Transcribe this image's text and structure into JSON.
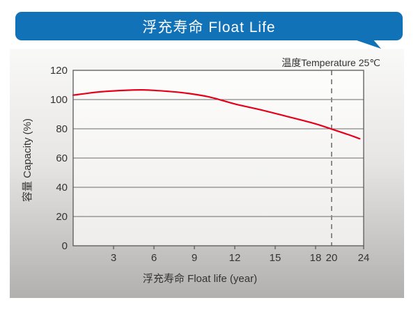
{
  "header": {
    "title": "浮充寿命 Float Life"
  },
  "colors": {
    "banner": "#1272b8",
    "curve": "#e60019",
    "grid": "#6b6b6b",
    "border": "#59595b",
    "dashed": "#8a8a8a",
    "text": "#333333",
    "plot_top": "#fdfdfc",
    "plot_bottom": "#eeedeb"
  },
  "chart_data": {
    "type": "line",
    "title": "浮充寿命 Float Life",
    "annotation": "温度Temperature 25℃",
    "xlabel": "浮充寿命 Float life (year)",
    "ylabel": "容量 Capacity (%)",
    "xlim": [
      0,
      24
    ],
    "ylim": [
      0,
      120
    ],
    "x_ticks": [
      3,
      6,
      9,
      12,
      15,
      18,
      20,
      24
    ],
    "y_ticks": [
      0,
      20,
      40,
      60,
      80,
      100,
      120
    ],
    "grid": "horizontal",
    "legend_position": "none",
    "x_axis_note": "axis compressed after year 18 in source graphic",
    "series": [
      {
        "name": "Capacity",
        "color": "#e60019",
        "points": [
          [
            0,
            103.0
          ],
          [
            2,
            105.3
          ],
          [
            4,
            106.4
          ],
          [
            5,
            106.6
          ],
          [
            6,
            106.3
          ],
          [
            8,
            104.8
          ],
          [
            10,
            102.0
          ],
          [
            12,
            97.0
          ],
          [
            14,
            92.8
          ],
          [
            16,
            88.2
          ],
          [
            18,
            83.4
          ],
          [
            20,
            79.8
          ],
          [
            22,
            76.2
          ],
          [
            23.5,
            73.2
          ]
        ]
      }
    ],
    "reference_line": {
      "x": 20,
      "style": "dashed"
    }
  }
}
